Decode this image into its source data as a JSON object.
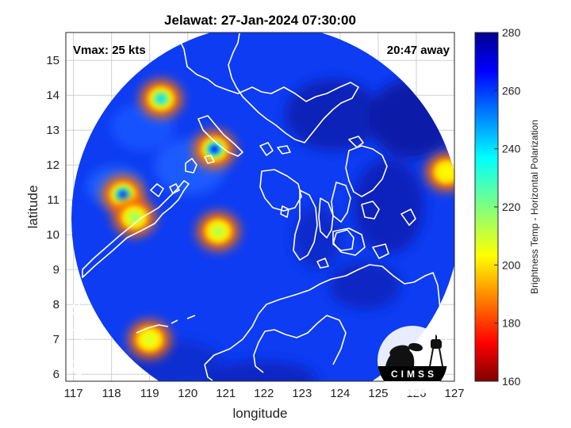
{
  "title": "Jelawat: 27-Jan-2024 07:30:00",
  "vmax_label": "Vmax: 25 kts",
  "time_away_label": "20:47 away",
  "x_axis": {
    "label": "longitude",
    "min": 116.8,
    "max": 127,
    "ticks": [
      117,
      118,
      119,
      120,
      121,
      122,
      123,
      124,
      125,
      126,
      127
    ]
  },
  "y_axis": {
    "label": "latitude",
    "min": 5.8,
    "max": 15.8,
    "ticks": [
      6,
      7,
      8,
      9,
      10,
      11,
      12,
      13,
      14,
      15
    ]
  },
  "colorbar": {
    "label": "Brightness Temp - Horizontal Polarization",
    "min": 160,
    "max": 280,
    "ticks": [
      160,
      180,
      200,
      220,
      240,
      260,
      280
    ],
    "colormap": "jet"
  },
  "logo_text": "CIMSS",
  "colors": {
    "background_blue": "#0d3cf2",
    "coastline": "#ffffff",
    "logo_bg": "#000000"
  },
  "features": {
    "scan_center": {
      "lon": 122.0,
      "lat": 10.5
    },
    "cold_spots": [
      {
        "lon": 120.7,
        "lat": 12.45,
        "min_temp": 175
      },
      {
        "lon": 118.3,
        "lat": 11.15,
        "min_temp": 178
      },
      {
        "lon": 119.3,
        "lat": 13.9,
        "min_temp": 200
      },
      {
        "lon": 120.8,
        "lat": 10.1,
        "min_temp": 225
      },
      {
        "lon": 118.6,
        "lat": 10.5,
        "min_temp": 222
      },
      {
        "lon": 119.0,
        "lat": 7.0,
        "min_temp": 230
      },
      {
        "lon": 126.8,
        "lat": 11.8,
        "min_temp": 235
      }
    ]
  }
}
